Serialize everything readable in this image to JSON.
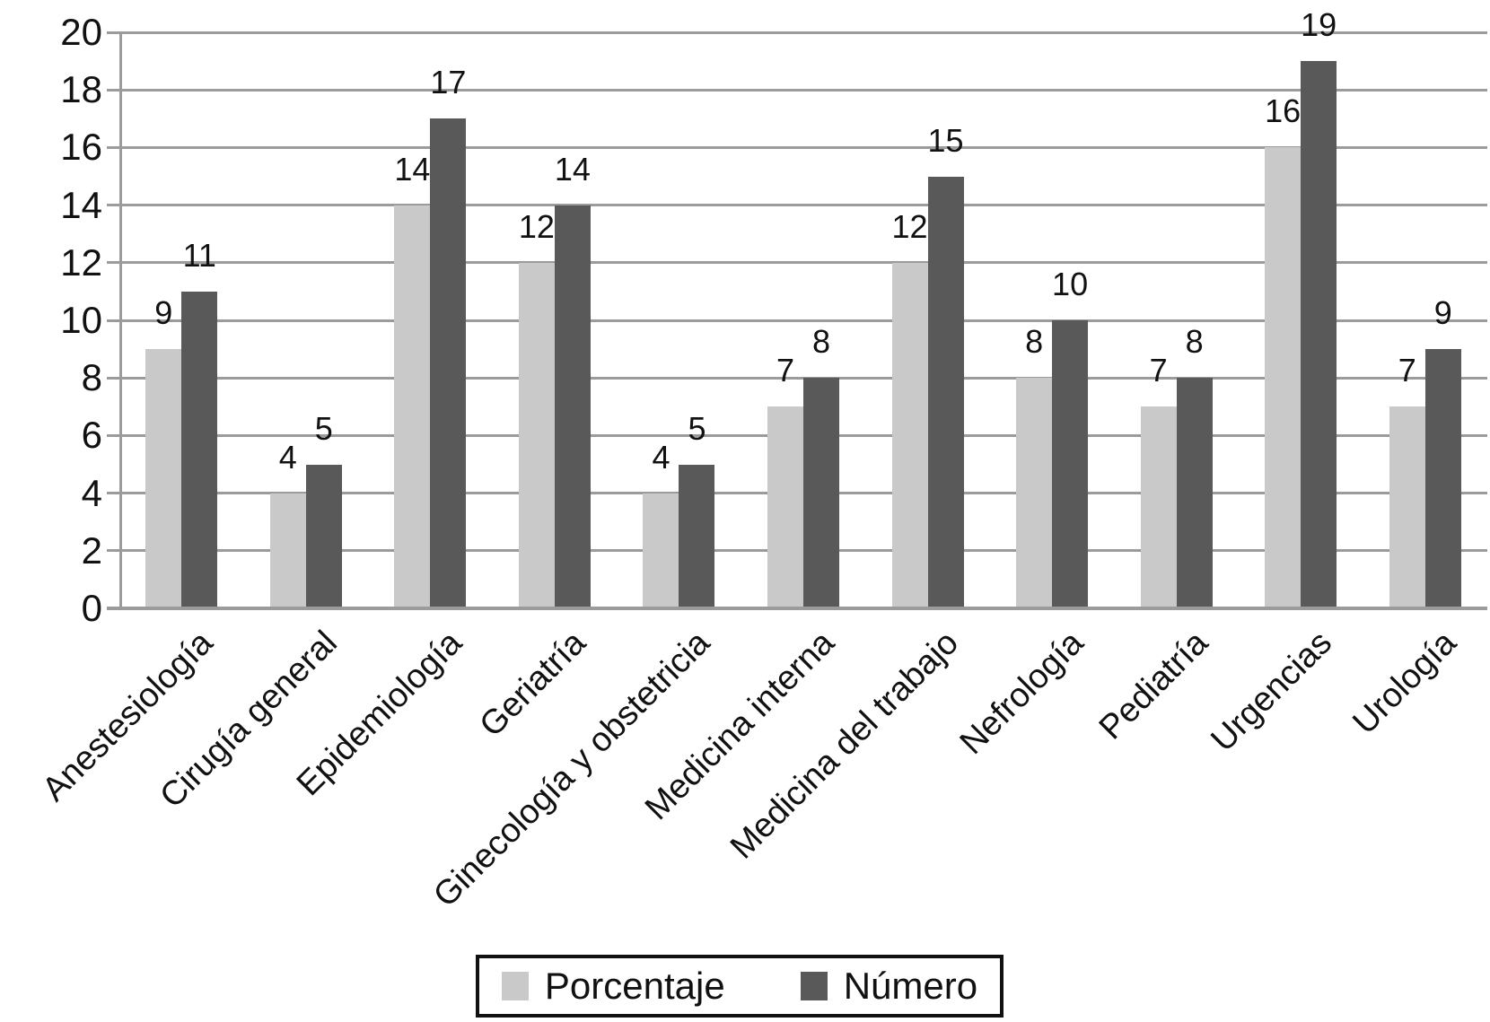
{
  "chart_data": {
    "type": "bar",
    "title": "",
    "categories": [
      "Anestesiología",
      "Cirugía general",
      "Epidemiología",
      "Geriatría",
      "Ginecología y obstetricia",
      "Medicina interna",
      "Medicina del trabajo",
      "Nefrología",
      "Pediatría",
      "Urgencias",
      "Urología"
    ],
    "series": [
      {
        "name": "Porcentaje",
        "color": "#c9c9c9",
        "values": [
          9,
          4,
          14,
          12,
          4,
          7,
          12,
          8,
          7,
          16,
          7
        ]
      },
      {
        "name": "Número",
        "color": "#595959",
        "values": [
          11,
          5,
          17,
          14,
          5,
          8,
          15,
          10,
          8,
          19,
          9
        ]
      }
    ],
    "ylim": [
      0,
      20
    ],
    "yticks": [
      0,
      2,
      4,
      6,
      8,
      10,
      12,
      14,
      16,
      18,
      20
    ],
    "xlabel": "",
    "ylabel": "",
    "grid": "horizontal",
    "legend_position": "bottom",
    "bar_value_labels": true
  },
  "colors": {
    "gridline": "#9b9b9b",
    "axis": "#9b9b9b",
    "text": "#111111",
    "background": "#ffffff"
  }
}
